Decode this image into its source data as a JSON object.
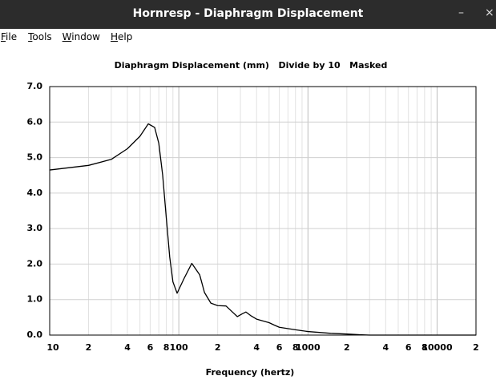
{
  "window": {
    "title": "Hornresp - Diaphragm Displacement",
    "minimize": "–",
    "close": "×"
  },
  "menu": [
    "File",
    "Tools",
    "Window",
    "Help"
  ],
  "chart_data": {
    "type": "line",
    "title": "Diaphragm Displacement (mm)   Divide by 10   Masked",
    "x_label": "Frequency (hertz)",
    "x_scale": "log",
    "xlim": [
      10,
      20000
    ],
    "ylim": [
      0,
      7
    ],
    "xticks": [
      10,
      {
        "value": 20,
        "label": "2"
      },
      {
        "value": 40,
        "label": "4"
      },
      {
        "value": 60,
        "label": "6"
      },
      {
        "value": 80,
        "label": "8"
      },
      100,
      {
        "value": 200,
        "label": "2"
      },
      {
        "value": 400,
        "label": "4"
      },
      {
        "value": 600,
        "label": "6"
      },
      {
        "value": 800,
        "label": "8"
      },
      1000,
      {
        "value": 2000,
        "label": "2"
      },
      {
        "value": 4000,
        "label": "4"
      },
      {
        "value": 6000,
        "label": "6"
      },
      {
        "value": 8000,
        "label": "8"
      },
      10000,
      {
        "value": 20000,
        "label": "2"
      }
    ],
    "x_minor_gridlines": [
      30,
      50,
      70,
      90,
      300,
      500,
      700,
      900,
      3000,
      5000,
      7000,
      9000
    ],
    "yticks": [
      {
        "value": 0,
        "label": "0.0"
      },
      {
        "value": 1,
        "label": "1.0"
      },
      {
        "value": 2,
        "label": "2.0"
      },
      {
        "value": 3,
        "label": "3.0"
      },
      {
        "value": 4,
        "label": "4.0"
      },
      {
        "value": 5,
        "label": "5.0"
      },
      {
        "value": 6,
        "label": "6.0"
      },
      {
        "value": 7,
        "label": "7.0"
      }
    ],
    "grid": true,
    "series": [
      {
        "name": "Displacement",
        "color": "#000000",
        "x": [
          10,
          20,
          30,
          40,
          50,
          58,
          65,
          70,
          75,
          80,
          85,
          90,
          97,
          110,
          126,
          145,
          158,
          177,
          200,
          232,
          260,
          284,
          310,
          331,
          360,
          400,
          500,
          550,
          600,
          800,
          1000,
          1500,
          2000,
          2500,
          3000,
          20000
        ],
        "values": [
          4.65,
          4.78,
          4.95,
          5.25,
          5.6,
          5.95,
          5.85,
          5.4,
          4.5,
          3.3,
          2.2,
          1.5,
          1.18,
          1.6,
          2.02,
          1.7,
          1.2,
          0.9,
          0.83,
          0.82,
          0.65,
          0.52,
          0.6,
          0.65,
          0.55,
          0.45,
          0.35,
          0.28,
          0.22,
          0.15,
          0.1,
          0.05,
          0.03,
          0.01,
          0,
          0
        ]
      }
    ]
  }
}
